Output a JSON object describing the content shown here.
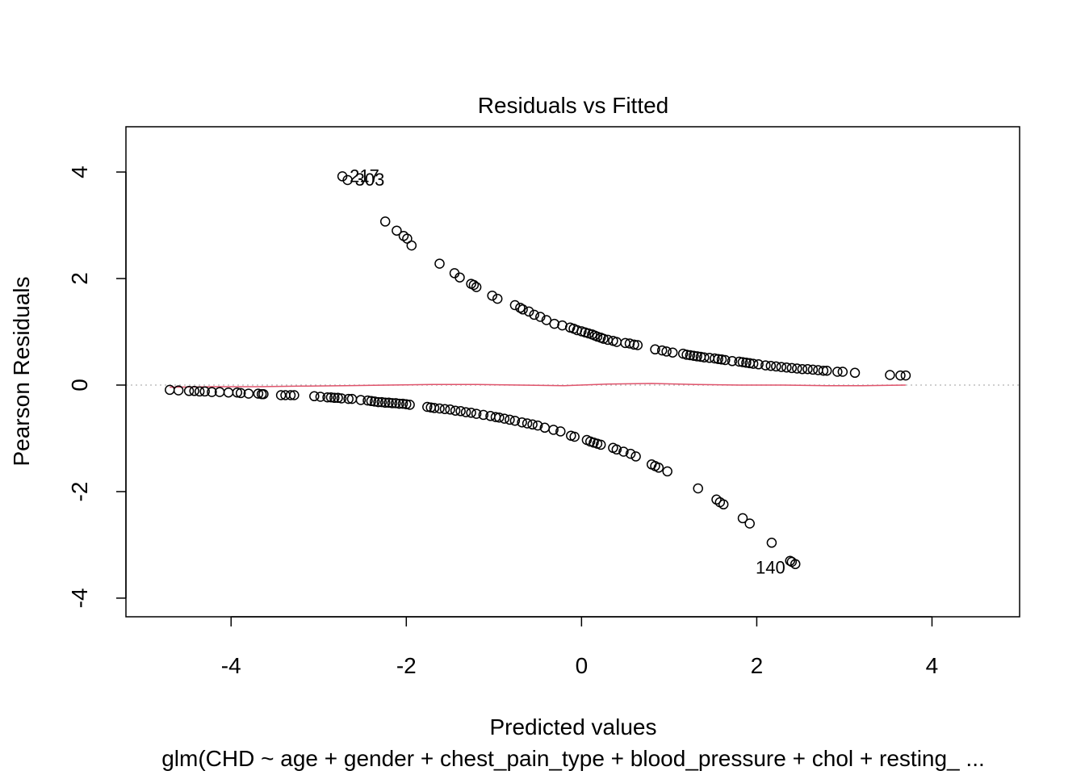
{
  "chart_data": {
    "type": "scatter",
    "title": "Residuals vs Fitted",
    "xlabel": "Predicted values",
    "ylabel": "Pearson Residuals",
    "subtitle": "glm(CHD ~ age + gender + chest_pain_type + blood_pressure + chol + resting_ ...",
    "xlim": [
      -5.2,
      5.0
    ],
    "ylim": [
      -4.35,
      4.85
    ],
    "x_ticks": [
      -4,
      -2,
      0,
      2,
      4
    ],
    "y_ticks": [
      -4,
      -2,
      0,
      2,
      4
    ],
    "x_tick_labels": [
      "-4",
      "-2",
      "0",
      "2",
      "4"
    ],
    "y_tick_labels": [
      "-4",
      "-2",
      "0",
      "2",
      "4"
    ],
    "grid": false,
    "colors": {
      "points": "#000000",
      "smooth": "#df536b",
      "reference": "#bebebe"
    },
    "reference_line": {
      "y": 0,
      "style": "dotted"
    },
    "labeled_points": [
      {
        "label": "217",
        "x": -2.73,
        "y": 3.92
      },
      {
        "label": "303",
        "x": -2.67,
        "y": 3.85
      },
      {
        "label": "140",
        "x": 2.38,
        "y": -3.3
      }
    ],
    "series": [
      {
        "role": "observations",
        "x": [
          -2.73,
          -2.67,
          -2.24,
          -2.11,
          -2.03,
          -1.99,
          -1.94,
          -1.62,
          -1.45,
          -1.39,
          -1.26,
          -1.23,
          -1.2,
          -1.02,
          -0.96,
          -0.76,
          -0.7,
          -0.67,
          -0.6,
          -0.54,
          -0.47,
          -0.4,
          -0.31,
          -0.22,
          -0.13,
          -0.09,
          -0.05,
          0.0,
          0.04,
          0.08,
          0.12,
          0.15,
          0.18,
          0.22,
          0.25,
          0.3,
          0.36,
          0.4,
          0.5,
          0.55,
          0.6,
          0.64,
          0.84,
          0.92,
          0.97,
          1.04,
          1.16,
          1.2,
          1.24,
          1.28,
          1.32,
          1.36,
          1.4,
          1.46,
          1.52,
          1.56,
          1.6,
          1.64,
          1.72,
          1.8,
          1.84,
          1.88,
          1.92,
          1.96,
          2.02,
          2.1,
          2.16,
          2.22,
          2.28,
          2.34,
          2.4,
          2.46,
          2.52,
          2.58,
          2.64,
          2.7,
          2.76,
          2.8,
          2.92,
          2.98,
          3.12,
          3.52,
          3.64,
          3.7,
          -4.7,
          -4.6,
          -4.48,
          -4.42,
          -4.36,
          -4.3,
          -4.22,
          -4.13,
          -4.03,
          -3.93,
          -3.89,
          -3.8,
          -3.69,
          -3.65,
          -3.63,
          -3.43,
          -3.38,
          -3.32,
          -3.28,
          -3.05,
          -2.98,
          -2.9,
          -2.86,
          -2.82,
          -2.78,
          -2.74,
          -2.66,
          -2.62,
          -2.52,
          -2.44,
          -2.4,
          -2.36,
          -2.32,
          -2.28,
          -2.24,
          -2.2,
          -2.16,
          -2.12,
          -2.08,
          -2.04,
          -2.0,
          -1.96,
          -1.76,
          -1.72,
          -1.68,
          -1.62,
          -1.56,
          -1.5,
          -1.44,
          -1.38,
          -1.32,
          -1.26,
          -1.2,
          -1.12,
          -1.04,
          -0.98,
          -0.94,
          -0.88,
          -0.82,
          -0.76,
          -0.68,
          -0.62,
          -0.56,
          -0.5,
          -0.42,
          -0.32,
          -0.24,
          -0.12,
          -0.08,
          0.06,
          0.1,
          0.14,
          0.18,
          0.22,
          0.36,
          0.4,
          0.48,
          0.56,
          0.62,
          0.8,
          0.84,
          0.88,
          0.98,
          1.33,
          1.54,
          1.58,
          1.62,
          1.84,
          1.92,
          2.17,
          2.38,
          2.4,
          2.44
        ],
        "y": [
          3.92,
          3.85,
          3.07,
          2.9,
          2.8,
          2.75,
          2.62,
          2.28,
          2.1,
          2.02,
          1.9,
          1.88,
          1.84,
          1.68,
          1.62,
          1.5,
          1.45,
          1.42,
          1.38,
          1.32,
          1.28,
          1.22,
          1.15,
          1.12,
          1.08,
          1.06,
          1.03,
          1.01,
          0.99,
          0.97,
          0.95,
          0.93,
          0.91,
          0.89,
          0.87,
          0.85,
          0.83,
          0.81,
          0.79,
          0.78,
          0.76,
          0.75,
          0.67,
          0.65,
          0.63,
          0.61,
          0.59,
          0.57,
          0.56,
          0.55,
          0.54,
          0.53,
          0.52,
          0.51,
          0.5,
          0.49,
          0.48,
          0.47,
          0.45,
          0.44,
          0.43,
          0.42,
          0.41,
          0.4,
          0.39,
          0.37,
          0.36,
          0.35,
          0.34,
          0.33,
          0.32,
          0.31,
          0.3,
          0.3,
          0.29,
          0.28,
          0.27,
          0.27,
          0.25,
          0.25,
          0.23,
          0.19,
          0.18,
          0.18,
          -0.09,
          -0.1,
          -0.11,
          -0.11,
          -0.12,
          -0.12,
          -0.13,
          -0.13,
          -0.14,
          -0.14,
          -0.15,
          -0.16,
          -0.16,
          -0.17,
          -0.17,
          -0.19,
          -0.19,
          -0.19,
          -0.19,
          -0.21,
          -0.22,
          -0.23,
          -0.23,
          -0.24,
          -0.24,
          -0.25,
          -0.26,
          -0.26,
          -0.28,
          -0.29,
          -0.3,
          -0.31,
          -0.32,
          -0.32,
          -0.33,
          -0.33,
          -0.34,
          -0.34,
          -0.35,
          -0.35,
          -0.36,
          -0.37,
          -0.41,
          -0.42,
          -0.43,
          -0.44,
          -0.45,
          -0.46,
          -0.48,
          -0.49,
          -0.51,
          -0.52,
          -0.54,
          -0.56,
          -0.58,
          -0.6,
          -0.61,
          -0.63,
          -0.65,
          -0.67,
          -0.7,
          -0.72,
          -0.74,
          -0.76,
          -0.8,
          -0.84,
          -0.87,
          -0.95,
          -0.97,
          -1.03,
          -1.06,
          -1.08,
          -1.1,
          -1.12,
          -1.18,
          -1.21,
          -1.25,
          -1.29,
          -1.34,
          -1.49,
          -1.52,
          -1.55,
          -1.62,
          -1.94,
          -2.15,
          -2.2,
          -2.24,
          -2.5,
          -2.6,
          -2.96,
          -3.3,
          -3.32,
          -3.36
        ]
      },
      {
        "role": "smooth",
        "x": [
          -4.7,
          -4.2,
          -3.7,
          -3.2,
          -2.7,
          -2.2,
          -1.7,
          -1.2,
          -0.7,
          -0.2,
          0.3,
          0.8,
          1.3,
          1.8,
          2.3,
          2.8,
          3.2,
          3.7
        ],
        "y": [
          -0.04,
          -0.03,
          -0.03,
          -0.02,
          -0.01,
          0.0,
          0.01,
          0.01,
          0.0,
          -0.01,
          0.02,
          0.03,
          0.01,
          0.0,
          0.0,
          -0.01,
          -0.01,
          0.0
        ]
      }
    ]
  }
}
